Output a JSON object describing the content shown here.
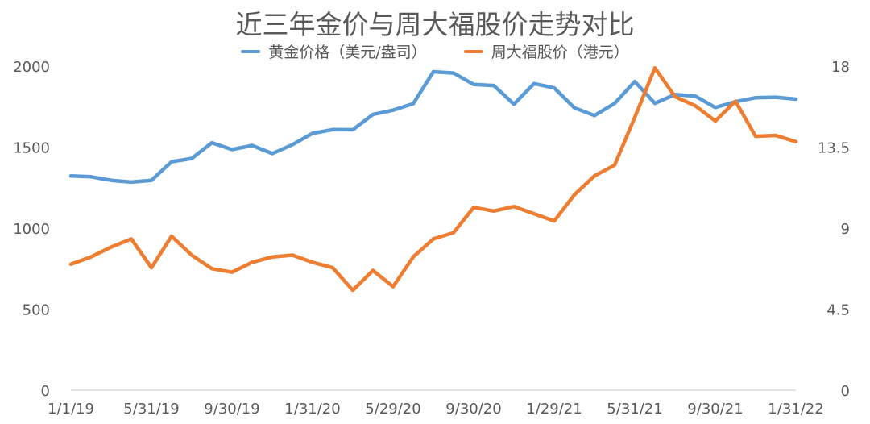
{
  "chart_data": {
    "type": "line",
    "title": "近三年金价与周大福股价走势对比",
    "x": [
      "2019-01",
      "2019-02",
      "2019-03",
      "2019-04",
      "2019-05",
      "2019-06",
      "2019-07",
      "2019-08",
      "2019-09",
      "2019-10",
      "2019-11",
      "2019-12",
      "2020-01",
      "2020-02",
      "2020-03",
      "2020-04",
      "2020-05",
      "2020-06",
      "2020-07",
      "2020-08",
      "2020-09",
      "2020-10",
      "2020-11",
      "2020-12",
      "2021-01",
      "2021-02",
      "2021-03",
      "2021-04",
      "2021-05",
      "2021-06",
      "2021-07",
      "2021-08",
      "2021-09",
      "2021-10",
      "2021-11",
      "2021-12",
      "2022-01"
    ],
    "x_tick_labels": [
      "1/1/19",
      "5/31/19",
      "9/30/19",
      "1/31/20",
      "5/29/20",
      "9/30/20",
      "1/29/21",
      "5/31/21",
      "9/30/21",
      "1/31/22"
    ],
    "y_left_ticks": [
      "0",
      "500",
      "1000",
      "1500",
      "2000"
    ],
    "y_right_ticks": [
      "0",
      "4.5",
      "9",
      "13.5",
      "18"
    ],
    "ylim_left": [
      0,
      2000
    ],
    "ylim_right": [
      0,
      18
    ],
    "grid": false,
    "legend_position": "top",
    "series": [
      {
        "name": "黄金价格（美元/盎司）",
        "axis": "left",
        "color": "#5b9bd5",
        "values": [
          1322,
          1317,
          1295,
          1284,
          1295,
          1410,
          1430,
          1527,
          1485,
          1510,
          1460,
          1515,
          1585,
          1608,
          1607,
          1702,
          1728,
          1768,
          1965,
          1957,
          1887,
          1880,
          1765,
          1892,
          1865,
          1743,
          1695,
          1770,
          1905,
          1770,
          1825,
          1815,
          1745,
          1780,
          1805,
          1808,
          1796
        ]
      },
      {
        "name": "周大福股价（港元）",
        "axis": "right",
        "color": "#ed7d31",
        "values": [
          7.0,
          7.4,
          7.95,
          8.4,
          6.8,
          8.55,
          7.5,
          6.75,
          6.55,
          7.1,
          7.4,
          7.5,
          7.1,
          6.8,
          5.55,
          6.65,
          5.75,
          7.4,
          8.4,
          8.75,
          10.15,
          9.95,
          10.2,
          9.8,
          9.4,
          10.85,
          11.9,
          12.5,
          15.15,
          17.9,
          16.3,
          15.8,
          14.95,
          16.05,
          14.1,
          14.15,
          13.8
        ]
      }
    ]
  }
}
